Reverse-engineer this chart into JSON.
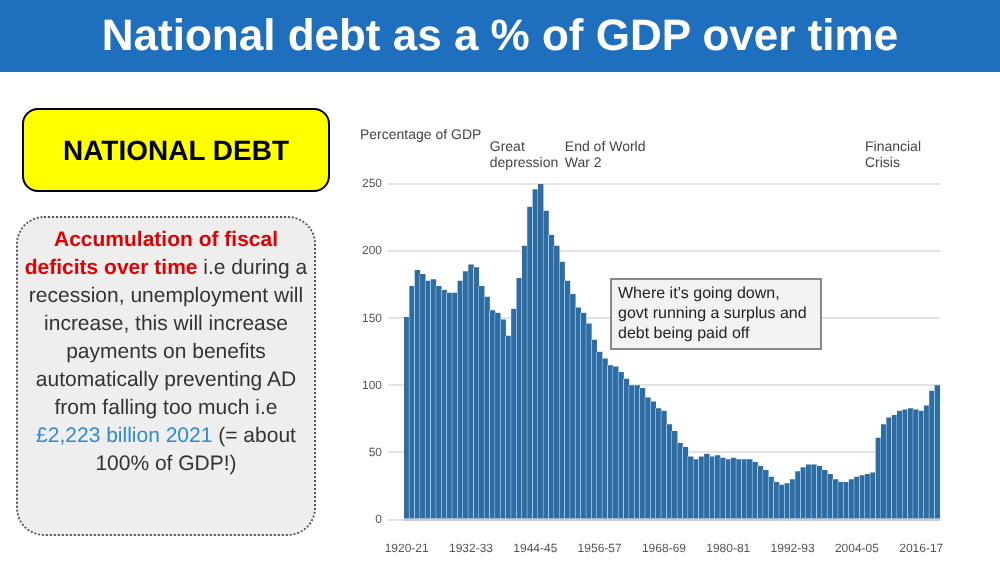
{
  "chart_data": {
    "type": "bar",
    "title": "National debt as a % of GDP over time",
    "subtitle": "NATIONAL DEBT",
    "ylabel": "Percentage of GDP",
    "categories": [
      "1920-21",
      null,
      null,
      null,
      null,
      null,
      null,
      null,
      null,
      null,
      null,
      null,
      "1932-33",
      null,
      null,
      null,
      null,
      null,
      null,
      null,
      null,
      null,
      null,
      null,
      "1944-45",
      null,
      null,
      null,
      null,
      null,
      null,
      null,
      null,
      null,
      null,
      null,
      "1956-57",
      null,
      null,
      null,
      null,
      null,
      null,
      null,
      null,
      null,
      null,
      null,
      "1968-69",
      null,
      null,
      null,
      null,
      null,
      null,
      null,
      null,
      null,
      null,
      null,
      "1980-81",
      null,
      null,
      null,
      null,
      null,
      null,
      null,
      null,
      null,
      null,
      null,
      "1992-93",
      null,
      null,
      null,
      null,
      null,
      null,
      null,
      null,
      null,
      null,
      null,
      "2004-05",
      null,
      null,
      null,
      null,
      null,
      null,
      null,
      null,
      null,
      null,
      null,
      "2016-17",
      null,
      null,
      null
    ],
    "values": [
      151,
      174,
      186,
      183,
      178,
      179,
      174,
      171,
      169,
      169,
      178,
      185,
      190,
      188,
      174,
      166,
      156,
      154,
      149,
      137,
      157,
      180,
      204,
      233,
      246,
      250,
      230,
      212,
      204,
      192,
      178,
      168,
      158,
      154,
      146,
      134,
      125,
      120,
      115,
      114,
      110,
      105,
      100,
      100,
      98,
      91,
      88,
      83,
      81,
      71,
      66,
      57,
      54,
      47,
      45,
      47,
      49,
      47,
      48,
      46,
      45,
      46,
      45,
      45,
      45,
      43,
      40,
      37,
      32,
      28,
      26,
      27,
      30,
      36,
      39,
      41,
      41,
      40,
      37,
      34,
      30,
      28,
      28,
      30,
      32,
      33,
      34,
      35,
      61,
      71,
      76,
      78,
      81,
      82,
      83,
      82,
      81,
      85,
      96,
      100
    ],
    "color": "#2e6da4",
    "ylim": [
      0,
      250
    ],
    "yticks": [
      0,
      50,
      100,
      150,
      200,
      250
    ],
    "grid": "y",
    "annotations": [
      "Great depression",
      "End of World War 2",
      "Financial Crisis",
      "Where it’s going down, govt running a surplus and debt being paid off",
      "Accumulation of fiscal deficits over time",
      "i.e during a recession, unemployment will increase, this will increase payments on benefits automatically preventing AD from falling too much i.e",
      "£2,223 billion 2021",
      "(= about 100% of GDP!)"
    ]
  }
}
